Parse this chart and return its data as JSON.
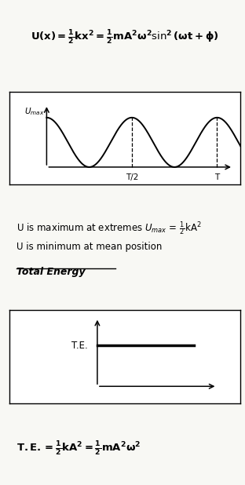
{
  "bg_color": "#f8f8f4",
  "text_color": "#000000",
  "formula_top": "U(x) = $\\frac{1}{2}$kx$^2$ = $\\frac{1}{2}$mA$^2$$\\omega$$^2$sin$^2$($\\omega$t + $\\phi$)",
  "graph1_umax_label": "$U_{max}$",
  "graph1_thalf_label": "T/2",
  "graph1_t_label": "T",
  "text_line1": "U is maximum at extremes $U_{max}$ = $\\frac{1}{2}$kA$^2$",
  "text_line2": "U is minimum at mean position",
  "text_line3": "Total Energy",
  "graph2_te_label": "T.E.",
  "formula_bottom": "T.E. = $\\frac{1}{2}$kA$^2$ = $\\frac{1}{2}$mA$^2$$\\omega$$^2$"
}
